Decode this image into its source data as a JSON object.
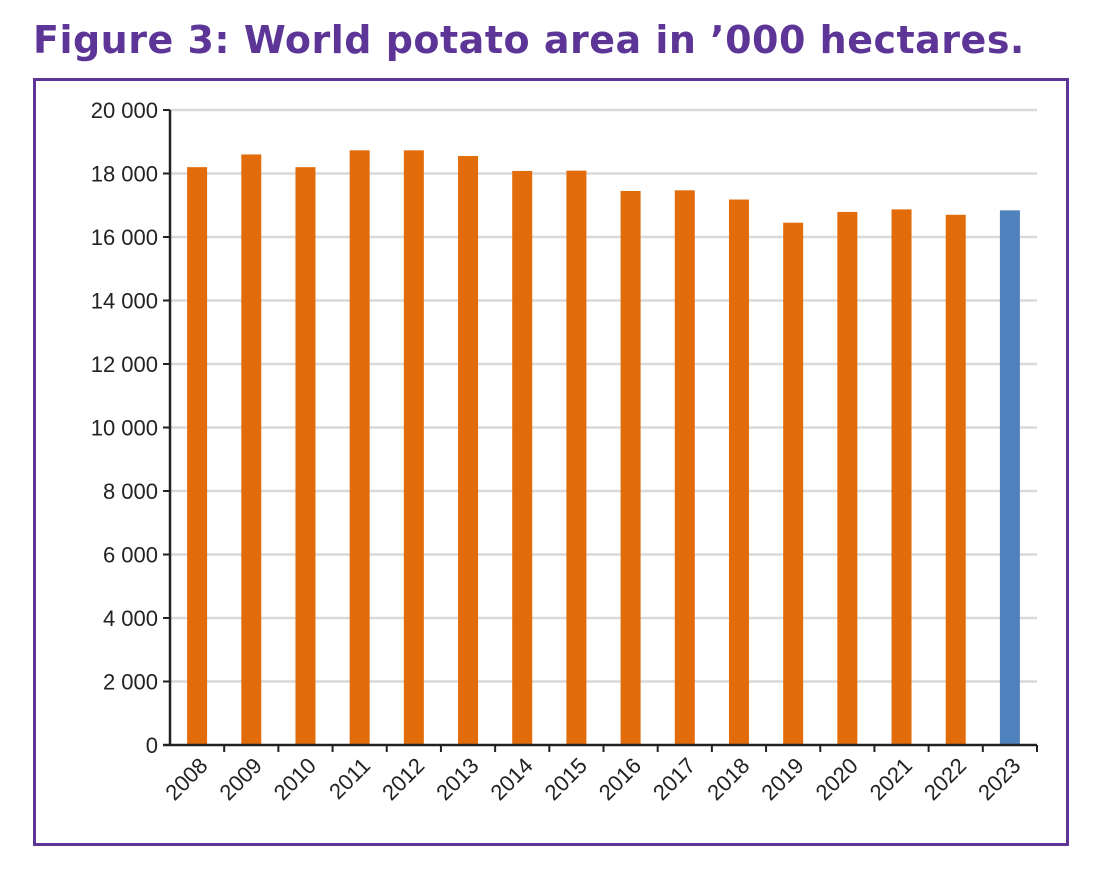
{
  "chart_data": {
    "type": "bar",
    "title": "Figure 3: World potato area in ’000 hectares.",
    "xlabel": "",
    "ylabel": "",
    "ylim": [
      0,
      20000
    ],
    "yticks": [
      "0",
      "2 000",
      "4 000",
      "6 000",
      "8 000",
      "10 000",
      "12 000",
      "14 000",
      "16 000",
      "18 000",
      "20 000"
    ],
    "grid": true,
    "categories": [
      "2008",
      "2009",
      "2010",
      "2011",
      "2012",
      "2013",
      "2014",
      "2015",
      "2016",
      "2017",
      "2018",
      "2019",
      "2020",
      "2021",
      "2022",
      "2023"
    ],
    "values": [
      18200,
      18600,
      18200,
      18730,
      18730,
      18550,
      18080,
      18090,
      17450,
      17470,
      17180,
      16450,
      16790,
      16870,
      16700,
      16840
    ],
    "colors": [
      "#e36c0a",
      "#e36c0a",
      "#e36c0a",
      "#e36c0a",
      "#e36c0a",
      "#e36c0a",
      "#e36c0a",
      "#e36c0a",
      "#e36c0a",
      "#e36c0a",
      "#e36c0a",
      "#e36c0a",
      "#e36c0a",
      "#e36c0a",
      "#e36c0a",
      "#4f81bd"
    ]
  }
}
